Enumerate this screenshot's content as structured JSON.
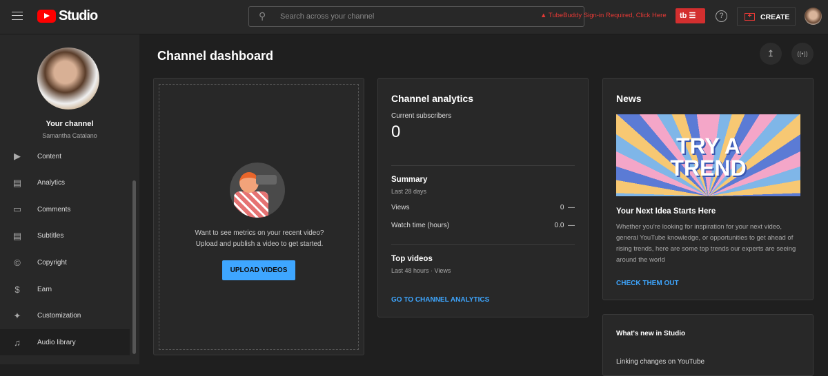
{
  "header": {
    "logo_text": "Studio",
    "search_placeholder": "Search across your channel",
    "tubebuddy_warning": "TubeBuddy Sign-in Required, Click Here",
    "tubebuddy_badge": "tb",
    "create_label": "CREATE"
  },
  "sidebar": {
    "channel_label": "Your channel",
    "channel_name": "Samantha Catalano",
    "items": [
      {
        "label": "Content",
        "icon": "content-icon"
      },
      {
        "label": "Analytics",
        "icon": "analytics-icon"
      },
      {
        "label": "Comments",
        "icon": "comments-icon"
      },
      {
        "label": "Subtitles",
        "icon": "subtitles-icon"
      },
      {
        "label": "Copyright",
        "icon": "copyright-icon"
      },
      {
        "label": "Earn",
        "icon": "dollar-icon"
      },
      {
        "label": "Customization",
        "icon": "magic-wand-icon"
      },
      {
        "label": "Audio library",
        "icon": "audio-library-icon"
      }
    ]
  },
  "main": {
    "title": "Channel dashboard",
    "upload_card": {
      "text_line1": "Want to see metrics on your recent video?",
      "text_line2": "Upload and publish a video to get started.",
      "button": "UPLOAD VIDEOS"
    },
    "analytics": {
      "title": "Channel analytics",
      "subs_label": "Current subscribers",
      "subs_value": "0",
      "summary_title": "Summary",
      "summary_period": "Last 28 days",
      "rows": [
        {
          "label": "Views",
          "value": "0",
          "trend": "—"
        },
        {
          "label": "Watch time (hours)",
          "value": "0.0",
          "trend": "—"
        }
      ],
      "top_title": "Top videos",
      "top_sub": "Last 48 hours · Views",
      "link": "GO TO CHANNEL ANALYTICS"
    },
    "news": {
      "title": "News",
      "banner_text_1": "TRY A",
      "banner_text_2": "TREND",
      "headline": "Your Next Idea Starts Here",
      "body": "Whether you're looking for inspiration for your next video, general YouTube knowledge, or opportunities to get ahead of rising trends, here are some top trends our experts are seeing around the world",
      "link": "CHECK THEM OUT"
    },
    "whats_new": {
      "title": "What's new in Studio",
      "item": "Linking changes on YouTube"
    }
  },
  "colors": {
    "accent": "#3ea6ff",
    "brand_red": "#ff0000",
    "tubebuddy": "#e53935"
  }
}
